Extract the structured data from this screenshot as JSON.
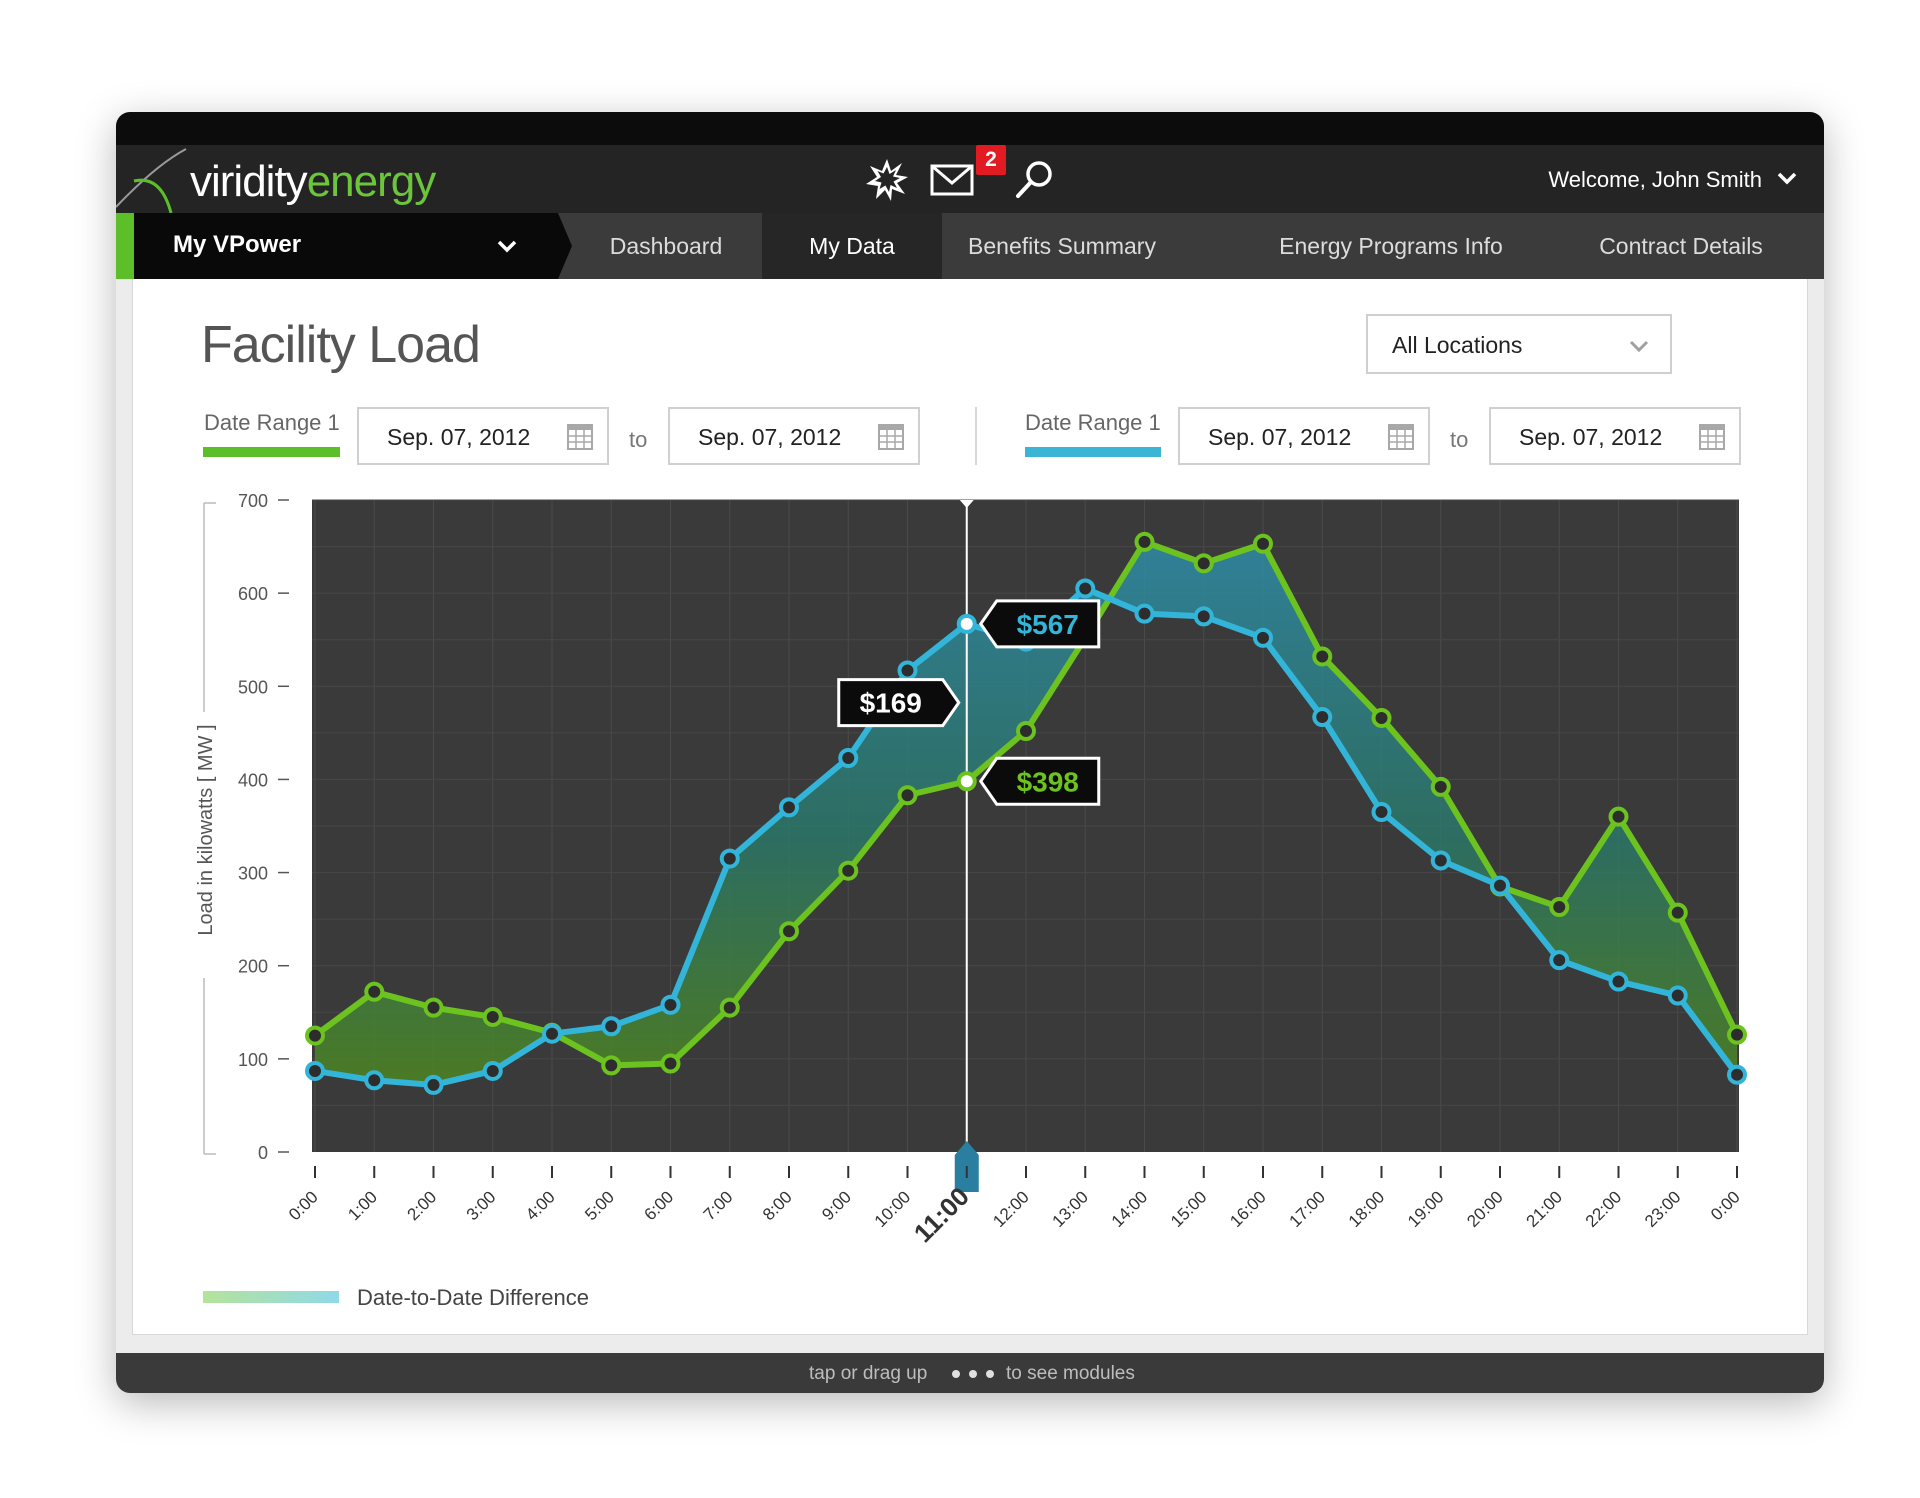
{
  "brand": {
    "part1": "viridity",
    "part2": "energy"
  },
  "header": {
    "alert_icon": "starburst-icon",
    "mail_icon": "envelope-icon",
    "mail_badge": "2",
    "search_icon": "search-icon",
    "welcome": "Welcome, John Smith"
  },
  "nav": {
    "vpower_label": "My VPower",
    "tabs": [
      {
        "label": "Dashboard"
      },
      {
        "label": "My Data"
      },
      {
        "label": "Benefits Summary"
      },
      {
        "label": "Energy Programs Info"
      },
      {
        "label": "Contract Details"
      }
    ],
    "active_tab": "My Data"
  },
  "page": {
    "title": "Facility Load",
    "location_select": "All Locations"
  },
  "date_range_1": {
    "label": "Date Range 1",
    "from": "Sep. 07, 2012",
    "to_label": "to",
    "to": "Sep. 07, 2012",
    "color": "#5cbf2a"
  },
  "date_range_2": {
    "label": "Date Range 1",
    "from": "Sep. 07, 2012",
    "to_label": "to",
    "to": "Sep. 07, 2012",
    "color": "#3ab5d6"
  },
  "chart_data": {
    "type": "line",
    "ylabel": "Load in kilowatts [ MW ]",
    "ylim": [
      0,
      700
    ],
    "yticks": [
      0,
      100,
      200,
      300,
      400,
      500,
      600,
      700
    ],
    "x": [
      "0:00",
      "1:00",
      "2:00",
      "3:00",
      "4:00",
      "5:00",
      "6:00",
      "7:00",
      "8:00",
      "9:00",
      "10:00",
      "11:00",
      "12:00",
      "13:00",
      "14:00",
      "15:00",
      "16:00",
      "17:00",
      "18:00",
      "19:00",
      "20:00",
      "21:00",
      "22:00",
      "23:00",
      "0:00"
    ],
    "series": [
      {
        "color": "#6cc21e",
        "values": [
          125,
          172,
          155,
          145,
          128,
          93,
          95,
          155,
          237,
          302,
          383,
          398,
          452,
          552,
          655,
          632,
          653,
          532,
          466,
          392,
          285,
          263,
          360,
          257,
          126
        ]
      },
      {
        "color": "#33b5d9",
        "values": [
          87,
          77,
          72,
          87,
          127,
          135,
          158,
          315,
          370,
          423,
          517,
          567,
          548,
          605,
          578,
          575,
          552,
          467,
          365,
          313,
          286,
          206,
          183,
          168,
          83
        ]
      }
    ],
    "selected_x": "11:00",
    "annotations": {
      "top": "$567",
      "bottom": "$398",
      "difference": "$169"
    },
    "legend": "Date-to-Date Difference",
    "grid": true
  },
  "footer": {
    "text1": "tap or drag up",
    "text2": "to see modules"
  }
}
